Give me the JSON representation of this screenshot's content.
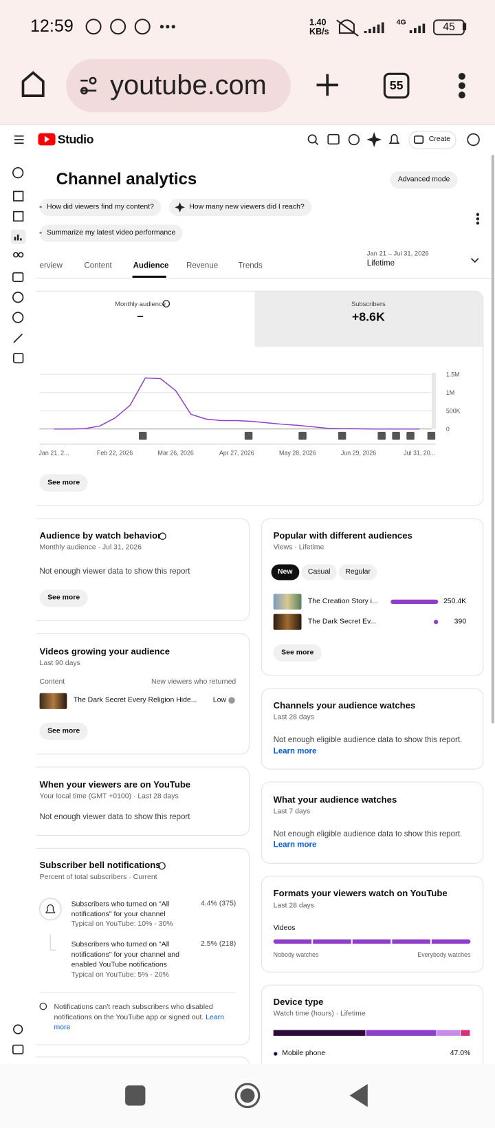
{
  "status": {
    "time": "12:59",
    "speed": "1.40",
    "speed_unit": "KB/s",
    "network": "4G",
    "battery": "45"
  },
  "browser": {
    "url": "youtube.com",
    "tab_count": "55"
  },
  "header": {
    "brand": "Studio",
    "create": "Create"
  },
  "page": {
    "title": "Channel analytics",
    "advanced_mode": "Advanced mode",
    "prompts": [
      "How did viewers find my content?",
      "How many new viewers did I reach?",
      "Summarize my latest video performance"
    ],
    "tabs": [
      "erview",
      "Content",
      "Audience",
      "Revenue",
      "Trends"
    ],
    "date_range": "Jan 21 – Jul 31, 2026",
    "period": "Lifetime",
    "button": "See more"
  },
  "metrics": [
    {
      "label": "Monthly audience",
      "value": "–"
    },
    {
      "label": "Subscribers",
      "value": "+8.6K"
    }
  ],
  "chart_data": {
    "type": "line",
    "categories": [
      "Jan 21, 2...",
      null,
      null,
      null,
      "Feb 22, 2026",
      null,
      null,
      null,
      "Mar 26, 2026",
      null,
      null,
      null,
      "Apr 27, 2026",
      null,
      null,
      null,
      "May 28, 2026",
      null,
      null,
      null,
      "Jun 29, 2026",
      null,
      null,
      null,
      "Jul 31, 20..."
    ],
    "values": [
      0,
      0,
      10000,
      80000,
      300000,
      650000,
      1400000,
      1380000,
      1050000,
      400000,
      270000,
      230000,
      230000,
      210000,
      170000,
      130000,
      100000,
      60000,
      20000,
      10000,
      5000,
      0,
      0,
      0,
      0
    ],
    "color": "#8e3ec8",
    "ylim": [
      0,
      1500000
    ],
    "yticks": [
      0,
      {
        "value": 500000,
        "label": "500K"
      },
      {
        "value": 1000000,
        "label": "1M"
      },
      {
        "value": 1500000,
        "label": "1.5M"
      }
    ],
    "grid": true
  },
  "watch_behavior": {
    "title": "Audience by watch behavior",
    "subtitle": "Monthly audience · Jul 31, 2026",
    "message": "Not enough viewer data to show this report",
    "button": "See more"
  },
  "growing": {
    "title": "Videos growing your audience",
    "subtitle": "Last 90 days",
    "columns": [
      "Content",
      "New viewers who returned"
    ],
    "video": "The Dark Secret Every Religion Hide...",
    "level": "Low",
    "button": "See more"
  },
  "when": {
    "title": "When your viewers are on YouTube",
    "subtitle": "Your local time (GMT +0100) · Last 28 days",
    "message": "Not enough viewer data to show this report"
  },
  "bell": {
    "title": "Subscriber bell notifications",
    "subtitle": "Percent of total subscribers · Current",
    "rows": [
      {
        "text": "Subscribers who turned on \"All notifications\" for your channel",
        "typical": "Typical on YouTube: 10% - 30%",
        "value": "4.4% (375)"
      },
      {
        "text": "Subscribers who turned on \"All notifications\" for your channel and enabled YouTube notifications",
        "typical": "Typical on YouTube: 5% - 20%",
        "value": "2.5% (218)"
      }
    ],
    "note": "Notifications can't reach subscribers who disabled notifications on the YouTube app or signed out.",
    "link": "Learn more"
  },
  "popular": {
    "title": "Popular with different audiences",
    "subtitle": "Views · Lifetime",
    "chips": [
      "New",
      "Casual",
      "Regular"
    ],
    "rows": [
      {
        "title": "The Creation Story i...",
        "value": 250400,
        "value_label": "250.4K"
      },
      {
        "title": "The Dark Secret Ev...",
        "value": 390,
        "value_label": "390"
      }
    ],
    "color": "#8e3ec8",
    "button": "See more"
  },
  "channels": {
    "title": "Channels your audience watches",
    "subtitle": "Last 28 days",
    "message": "Not enough eligible audience data to show this report.",
    "link": "Learn more"
  },
  "watches": {
    "title": "What your audience watches",
    "subtitle": "Last 7 days",
    "message": "Not enough eligible audience data to show this report.",
    "link": "Learn more"
  },
  "formats": {
    "title": "Formats your viewers watch on YouTube",
    "subtitle": "Last 28 days",
    "label": "Videos",
    "low": "Nobody watches",
    "high": "Everybody watches"
  },
  "device": {
    "title": "Device type",
    "subtitle": "Watch time (hours) · Lifetime",
    "values": [
      47.0,
      36,
      12,
      5
    ],
    "colors": [
      "#2d0a3c",
      "#8e3ec8",
      "#c78bea",
      "#d8317a"
    ],
    "legend": {
      "name": "Mobile phone",
      "value_label": "47.0%"
    }
  }
}
